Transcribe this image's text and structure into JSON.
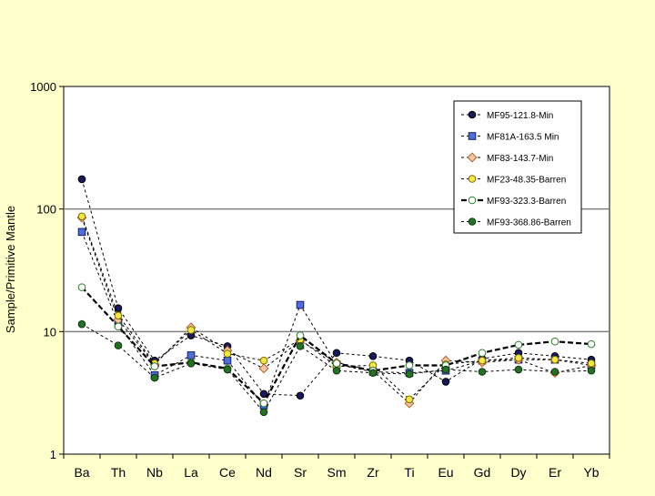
{
  "chart_data": {
    "type": "line",
    "title": "",
    "xlabel": "",
    "ylabel": "Sample/Primitive Mantle",
    "y_scale": "log",
    "ylim": [
      1,
      1000
    ],
    "y_ticks": [
      "1",
      "10",
      "100",
      "1000"
    ],
    "grid": "horizontal",
    "legend_position": "top-right",
    "categories": [
      "Ba",
      "Th",
      "Nb",
      "La",
      "Ce",
      "Nd",
      "Sr",
      "Sm",
      "Zr",
      "Ti",
      "Eu",
      "Gd",
      "Dy",
      "Er",
      "Yb"
    ],
    "series": [
      {
        "name": "MF95-121.8-Min",
        "marker": "circle",
        "fill": "#1a1a5a",
        "stroke": "#000000",
        "line": "thin-dashed",
        "values": [
          175,
          15.5,
          5.8,
          9.3,
          7.6,
          3.1,
          3.0,
          6.7,
          6.3,
          5.8,
          3.9,
          6.0,
          6.7,
          6.3,
          5.9
        ]
      },
      {
        "name": "MF81A-163.5 Min",
        "marker": "square",
        "fill": "#4d6fd6",
        "stroke": "#1a1a6a",
        "line": "thin-dashed",
        "values": [
          65,
          11.5,
          4.4,
          6.4,
          5.8,
          2.5,
          16.5,
          5.4,
          4.7,
          4.6,
          4.8,
          5.8,
          5.9,
          5.9,
          5.3
        ]
      },
      {
        "name": "MF83-143.7-Min",
        "marker": "diamond",
        "fill": "#f0c8a8",
        "stroke": "#b06030",
        "line": "thin-dashed",
        "values": [
          85,
          12.5,
          5.4,
          10.8,
          7.0,
          5.0,
          8.4,
          5.6,
          4.8,
          2.6,
          5.8,
          5.6,
          5.9,
          4.6,
          5.3
        ]
      },
      {
        "name": "MF23-48.35-Barren",
        "marker": "circle",
        "fill": "#f2e64a",
        "stroke": "#7a6a00",
        "line": "thin-dashed",
        "values": [
          87,
          13.5,
          5.5,
          10.3,
          6.6,
          5.8,
          8.6,
          5.2,
          5.3,
          2.8,
          5.4,
          5.8,
          6.1,
          5.9,
          5.5
        ]
      },
      {
        "name": "MF93-323.3-Barren",
        "marker": "circle",
        "fill": "#ffffff",
        "stroke": "#2a7a2a",
        "line": "thick-dashed",
        "values": [
          23,
          11.0,
          5.2,
          5.6,
          5.0,
          2.6,
          9.3,
          5.5,
          4.8,
          5.3,
          5.3,
          6.7,
          7.8,
          8.3,
          7.9
        ]
      },
      {
        "name": "MF93-368.86-Barren",
        "marker": "circle",
        "fill": "#2a6e2a",
        "stroke": "#0a3a0a",
        "line": "thin-dashed",
        "values": [
          11.5,
          7.7,
          4.2,
          5.5,
          4.9,
          2.2,
          7.6,
          4.8,
          4.6,
          4.5,
          4.9,
          4.7,
          4.9,
          4.7,
          4.8
        ]
      }
    ]
  }
}
